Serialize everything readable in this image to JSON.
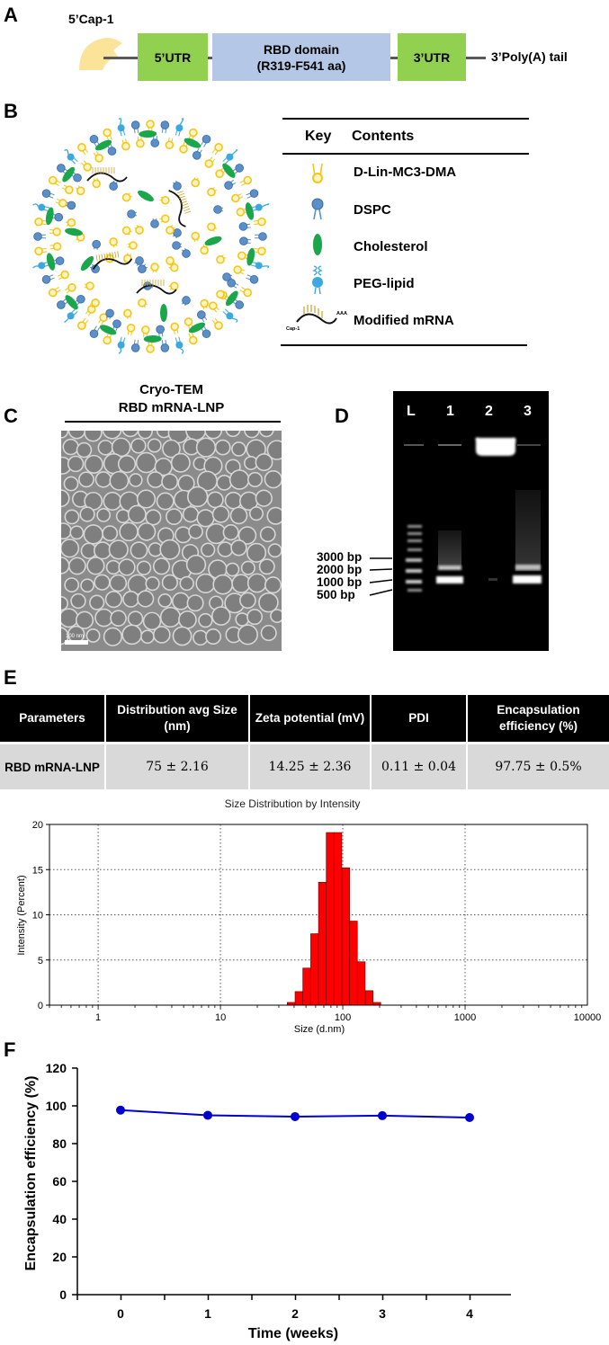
{
  "panel_labels": [
    "A",
    "B",
    "C",
    "D",
    "E",
    "F"
  ],
  "panel_a": {
    "cap_label": "5’Cap-1",
    "utr5": "5’UTR",
    "rbd_line1": "RBD domain",
    "rbd_line2": "(R319-F541 aa)",
    "utr3": "3’UTR",
    "polya": "3’Poly(A) tail",
    "colors": {
      "cap": "#fbe39a",
      "utr": "#92d050",
      "rbd": "#b4c7e7",
      "line": "#595959"
    }
  },
  "panel_b": {
    "key_header": "Key",
    "contents_header": "Contents",
    "items": [
      {
        "icon": "ionizable-lipid-icon",
        "label": "D-Lin-MC3-DMA"
      },
      {
        "icon": "dspc-icon",
        "label": "DSPC"
      },
      {
        "icon": "cholesterol-icon",
        "label": "Cholesterol"
      },
      {
        "icon": "peg-lipid-icon",
        "label": "PEG-lipid"
      },
      {
        "icon": "mrna-icon",
        "label": "Modified mRNA"
      }
    ],
    "mrna_cap": "Cap-1",
    "mrna_tail": "AAA",
    "colors": {
      "mc3": "#f5c518",
      "dspc": "#5b8fc9",
      "cholesterol": "#1aa64a",
      "peg": "#3ba9e0"
    }
  },
  "panel_c": {
    "title_line1": "Cryo-TEM",
    "title_line2": "RBD mRNA-LNP",
    "scale_bar": "100 nm"
  },
  "panel_d": {
    "lanes": [
      "L",
      "1",
      "2",
      "3"
    ],
    "markers": [
      "3000 bp",
      "2000 bp",
      "1000 bp",
      "500 bp"
    ]
  },
  "panel_e": {
    "headers": [
      "Parameters",
      "Distribution avg Size (nm)",
      "Zeta potential (mV)",
      "PDI",
      "Encapsulation efficiency (%)"
    ],
    "row": [
      "RBD mRNA-LNP",
      "75 ± 2.16",
      "14.25 ± 2.36",
      "0.11 ± 0.04",
      "97.75 ± 0.5%"
    ]
  },
  "chart_data": [
    {
      "type": "bar",
      "title": "Size Distribution by Intensity",
      "xlabel": "Size (d.nm)",
      "ylabel": "Intensity (Percent)",
      "x_scale": "log",
      "xlim": [
        0.4,
        10000
      ],
      "ylim": [
        0,
        20
      ],
      "x_ticks": [
        "1",
        "10",
        "100",
        "1000",
        "10000"
      ],
      "y_ticks": [
        "0",
        "5",
        "10",
        "15",
        "20"
      ],
      "grid": true,
      "bar_color": "#ff0000",
      "bins": [
        {
          "x": 37.8,
          "value": 0.3
        },
        {
          "x": 43.8,
          "value": 1.5
        },
        {
          "x": 50.7,
          "value": 4.1
        },
        {
          "x": 58.8,
          "value": 7.9
        },
        {
          "x": 68.1,
          "value": 13.6
        },
        {
          "x": 78.8,
          "value": 19.1
        },
        {
          "x": 91.3,
          "value": 19.1
        },
        {
          "x": 105.7,
          "value": 15.2
        },
        {
          "x": 122.4,
          "value": 9.3
        },
        {
          "x": 141.8,
          "value": 4.8
        },
        {
          "x": 164.2,
          "value": 1.6
        },
        {
          "x": 190.1,
          "value": 0.3
        }
      ]
    },
    {
      "type": "line",
      "xlabel": "Time (weeks)",
      "ylabel": "Encapsulation efficiency (%)",
      "x": [
        0,
        1,
        2,
        3,
        4
      ],
      "x_ticks": [
        "0",
        "1",
        "2",
        "3",
        "4"
      ],
      "y_ticks": [
        "0",
        "20",
        "40",
        "60",
        "80",
        "100",
        "120"
      ],
      "ylim": [
        0,
        120
      ],
      "grid": false,
      "series": [
        {
          "values": [
            97.75,
            95,
            94.3,
            94.8,
            93.8
          ],
          "color": "#0000cc"
        }
      ]
    }
  ]
}
